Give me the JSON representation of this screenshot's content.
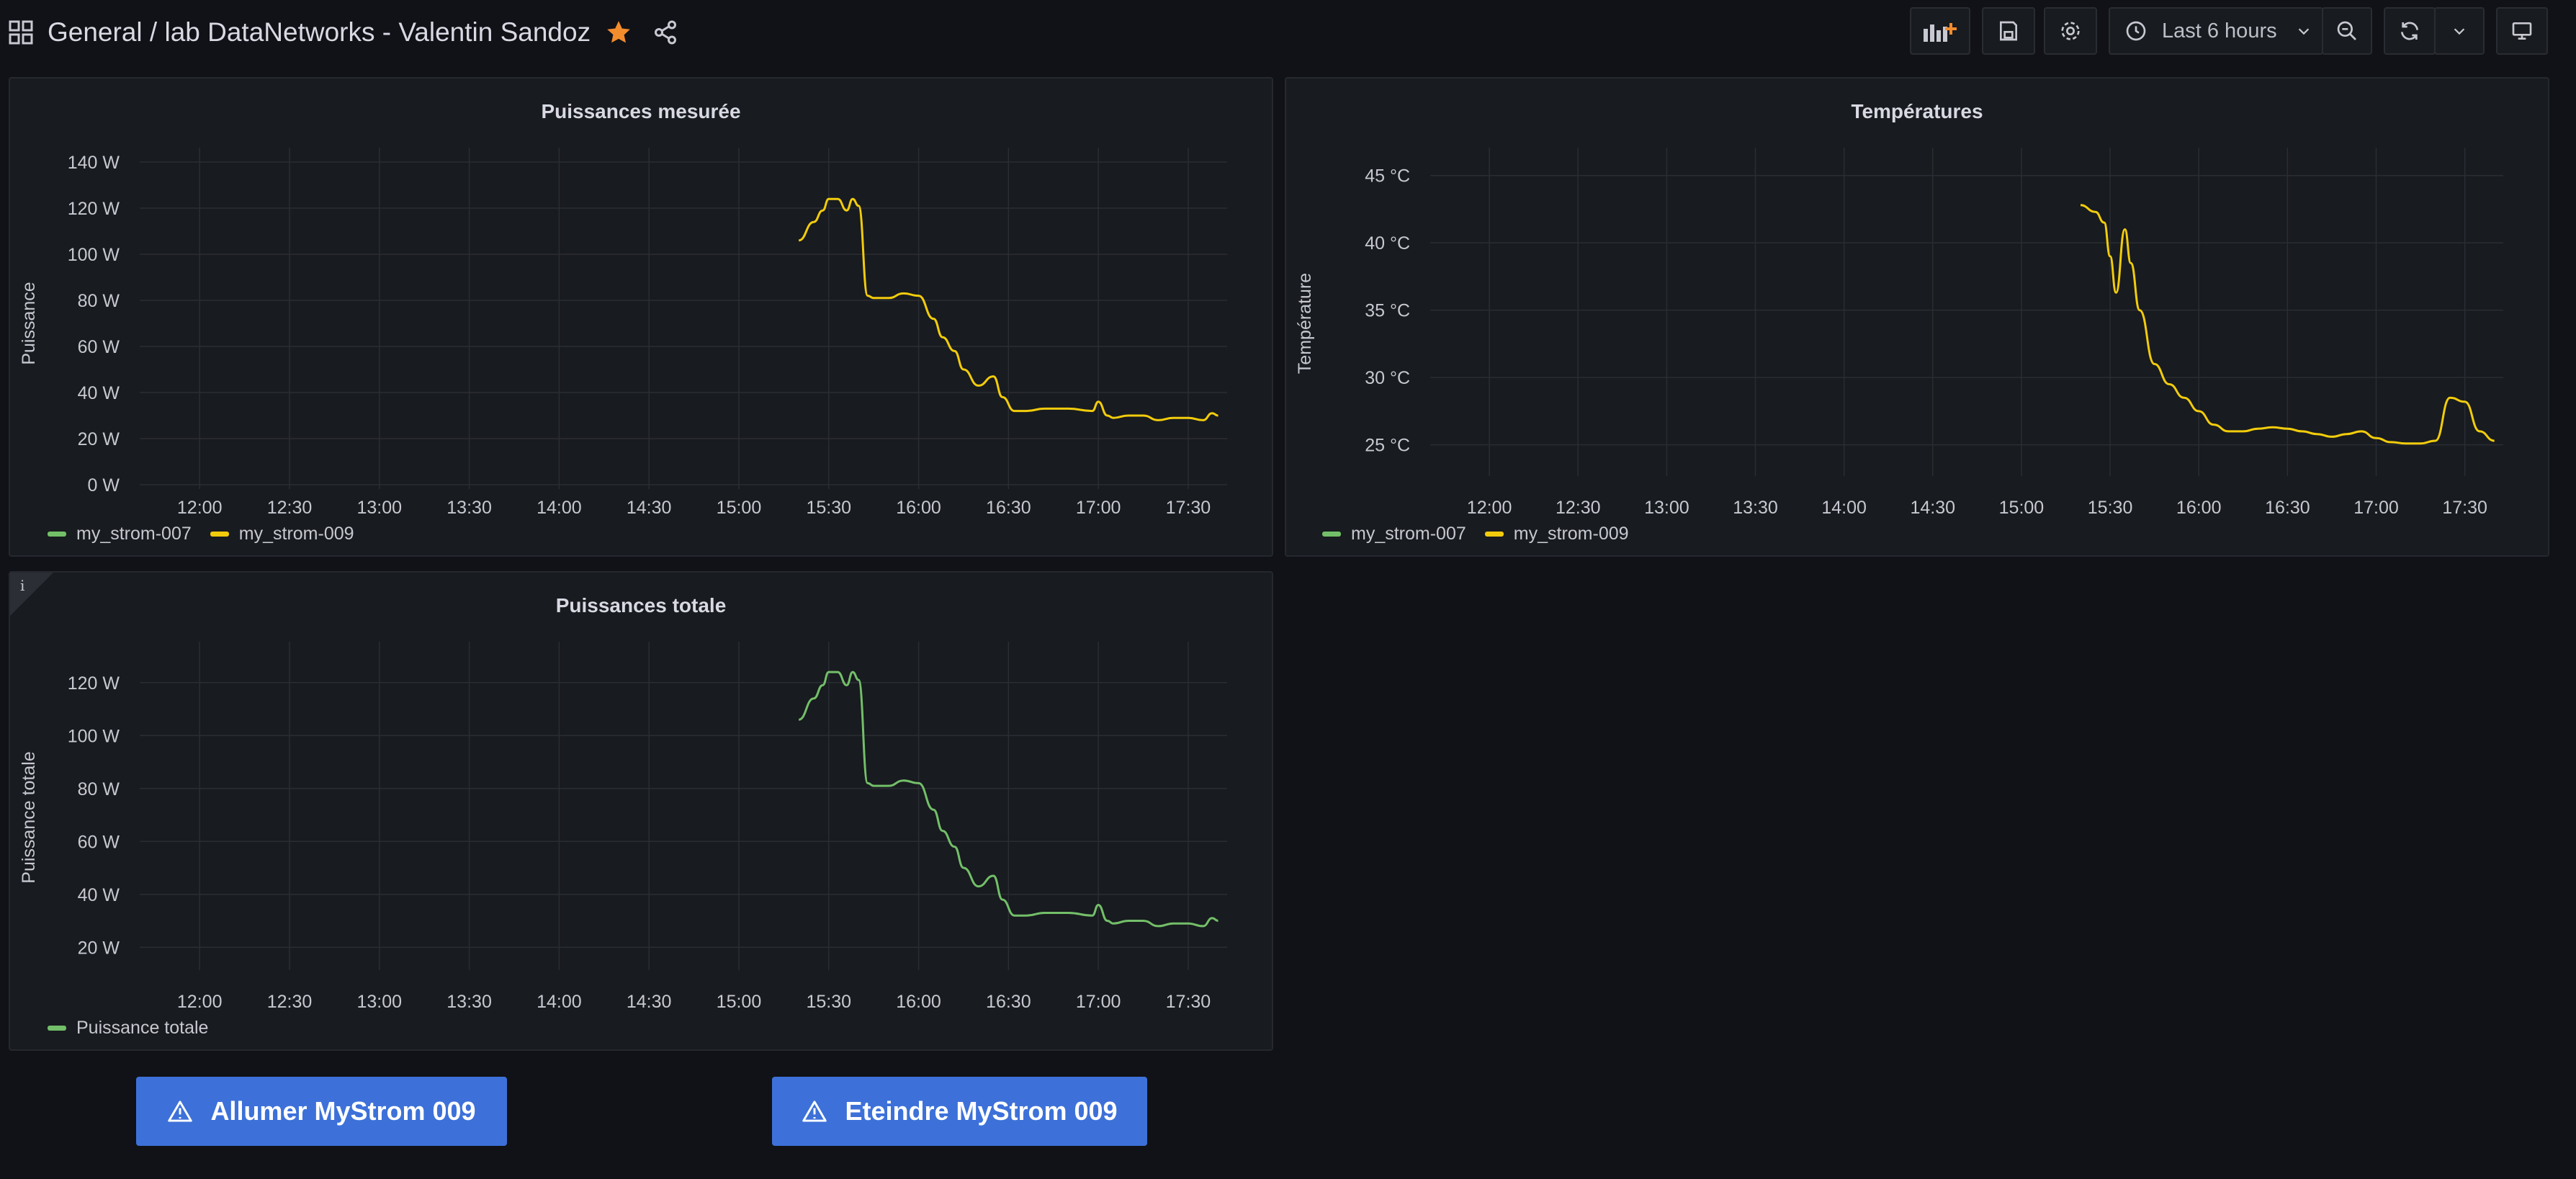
{
  "header": {
    "breadcrumb": "General  / lab DataNetworks - Valentin Sandoz",
    "time_range": "Last 6 hours"
  },
  "colors": {
    "green": "#73bf69",
    "yellow": "#f2cc0c",
    "accent": "#3d71d9",
    "star": "#f38c2d"
  },
  "icons": [
    "dashboards-grid-icon",
    "star-icon",
    "share-icon",
    "add-panel-icon",
    "save-icon",
    "settings-gear-icon",
    "clock-icon",
    "chevron-down-icon",
    "zoom-out-icon",
    "refresh-icon",
    "tv-mode-icon",
    "warning-icon",
    "info-icon"
  ],
  "panels": {
    "p1": {
      "title": "Puissances mesurée",
      "ylabel": "Puissance",
      "yticks": [
        "0 W",
        "20 W",
        "40 W",
        "60 W",
        "80 W",
        "100 W",
        "120 W",
        "140 W"
      ],
      "xticks": [
        "12:00",
        "12:30",
        "13:00",
        "13:30",
        "14:00",
        "14:30",
        "15:00",
        "15:30",
        "16:00",
        "16:30",
        "17:00",
        "17:30"
      ],
      "legend": [
        "my_strom-007",
        "my_strom-009"
      ]
    },
    "p2": {
      "title": "Températures",
      "ylabel": "Température",
      "yticks": [
        "25 °C",
        "30 °C",
        "35 °C",
        "40 °C",
        "45 °C"
      ],
      "xticks": [
        "12:00",
        "12:30",
        "13:00",
        "13:30",
        "14:00",
        "14:30",
        "15:00",
        "15:30",
        "16:00",
        "16:30",
        "17:00",
        "17:30"
      ],
      "legend": [
        "my_strom-007",
        "my_strom-009"
      ]
    },
    "p3": {
      "title": "Puissances totale",
      "ylabel": "Puissance totale",
      "yticks": [
        "20 W",
        "40 W",
        "60 W",
        "80 W",
        "100 W",
        "120 W"
      ],
      "xticks": [
        "12:00",
        "12:30",
        "13:00",
        "13:30",
        "14:00",
        "14:30",
        "15:00",
        "15:30",
        "16:00",
        "16:30",
        "17:00",
        "17:30"
      ],
      "legend": [
        "Puissance totale"
      ]
    }
  },
  "buttons": {
    "on": "Allumer MyStrom 009",
    "off": "Eteindre MyStrom 009"
  },
  "chart_data": [
    {
      "type": "line",
      "title": "Puissances mesurée",
      "ylabel": "Puissance",
      "ylim": [
        0,
        140
      ],
      "series": [
        {
          "name": "my_strom-007",
          "values": []
        },
        {
          "name": "my_strom-009",
          "x": [
            "15:20",
            "15:25",
            "15:28",
            "15:30",
            "15:33",
            "15:36",
            "15:38",
            "15:40",
            "15:43",
            "15:45",
            "15:50",
            "15:55",
            "16:00",
            "16:05",
            "16:08",
            "16:12",
            "16:15",
            "16:20",
            "16:25",
            "16:28",
            "16:32",
            "16:36",
            "16:42",
            "16:50",
            "16:58",
            "17:00",
            "17:03",
            "17:05",
            "17:10",
            "17:15",
            "17:20",
            "17:25",
            "17:30",
            "17:35",
            "17:38",
            "17:40"
          ],
          "values": [
            106,
            114,
            119,
            124,
            124,
            119,
            124,
            121,
            82,
            81,
            81,
            83,
            82,
            72,
            64,
            58,
            50,
            43,
            47,
            38,
            32,
            32,
            33,
            33,
            32,
            36,
            30,
            29,
            30,
            30,
            28,
            29,
            29,
            28,
            31,
            30
          ]
        }
      ]
    },
    {
      "type": "line",
      "title": "Températures",
      "ylabel": "Température",
      "ylim": [
        23,
        46
      ],
      "series": [
        {
          "name": "my_strom-007",
          "values": []
        },
        {
          "name": "my_strom-009",
          "x": [
            "15:20",
            "15:25",
            "15:28",
            "15:30",
            "15:32",
            "15:35",
            "15:37",
            "15:40",
            "15:45",
            "15:50",
            "15:55",
            "16:00",
            "16:05",
            "16:10",
            "16:15",
            "16:20",
            "16:25",
            "16:30",
            "16:35",
            "16:40",
            "16:45",
            "16:50",
            "16:55",
            "17:00",
            "17:05",
            "17:10",
            "17:15",
            "17:20",
            "17:25",
            "17:30",
            "17:35",
            "17:40"
          ],
          "values": [
            42.8,
            42.3,
            41.5,
            39,
            36.3,
            41,
            38.5,
            35,
            31,
            29.5,
            28.5,
            27.5,
            26.5,
            26,
            26,
            26.2,
            26.3,
            26.2,
            26,
            25.8,
            25.6,
            25.8,
            26,
            25.5,
            25.2,
            25.1,
            25.1,
            25.3,
            28.5,
            28.2,
            26,
            25.3
          ]
        }
      ]
    },
    {
      "type": "line",
      "title": "Puissances totale",
      "ylabel": "Puissance totale",
      "ylim": [
        13,
        130
      ],
      "series": [
        {
          "name": "Puissance totale",
          "x": [
            "15:20",
            "15:25",
            "15:28",
            "15:30",
            "15:33",
            "15:36",
            "15:38",
            "15:40",
            "15:43",
            "15:45",
            "15:50",
            "15:55",
            "16:00",
            "16:05",
            "16:08",
            "16:12",
            "16:15",
            "16:20",
            "16:25",
            "16:28",
            "16:32",
            "16:36",
            "16:42",
            "16:50",
            "16:58",
            "17:00",
            "17:03",
            "17:05",
            "17:10",
            "17:15",
            "17:20",
            "17:25",
            "17:30",
            "17:35",
            "17:38",
            "17:40"
          ],
          "values": [
            106,
            114,
            119,
            124,
            124,
            119,
            124,
            121,
            82,
            81,
            81,
            83,
            82,
            72,
            64,
            58,
            50,
            43,
            47,
            38,
            32,
            32,
            33,
            33,
            32,
            36,
            30,
            29,
            30,
            30,
            28,
            29,
            29,
            28,
            31,
            30
          ]
        }
      ]
    }
  ]
}
